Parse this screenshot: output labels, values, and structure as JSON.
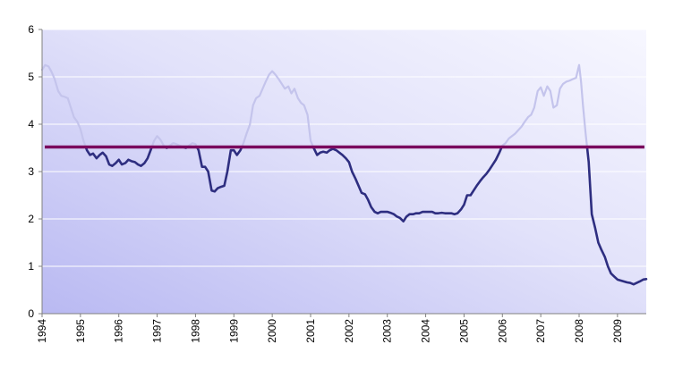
{
  "chart_data": {
    "type": "line",
    "title": "",
    "xlabel": "",
    "ylabel": "",
    "xlim": [
      1994.0,
      2009.75
    ],
    "ylim": [
      0,
      6
    ],
    "y_ticks": [
      0,
      1,
      2,
      3,
      4,
      5,
      6
    ],
    "x_ticks": [
      "1994",
      "1995",
      "1996",
      "1997",
      "1998",
      "1999",
      "2000",
      "2001",
      "2002",
      "2003",
      "2004",
      "2005",
      "2006",
      "2007",
      "2008",
      "2009"
    ],
    "grid": true,
    "legend": "none",
    "reference_line": {
      "y": 3.52,
      "color": "#7a0a5e"
    },
    "series": [
      {
        "color": "#2e2e80",
        "faded_color": "#c4c4ec",
        "points": [
          [
            1994.0,
            5.15
          ],
          [
            1994.08,
            5.25
          ],
          [
            1994.17,
            5.22
          ],
          [
            1994.25,
            5.1
          ],
          [
            1994.33,
            4.95
          ],
          [
            1994.42,
            4.7
          ],
          [
            1994.5,
            4.6
          ],
          [
            1994.58,
            4.58
          ],
          [
            1994.67,
            4.55
          ],
          [
            1994.75,
            4.35
          ],
          [
            1994.83,
            4.15
          ],
          [
            1994.92,
            4.05
          ],
          [
            1995.0,
            3.9
          ],
          [
            1995.08,
            3.65
          ],
          [
            1995.17,
            3.45
          ],
          [
            1995.25,
            3.35
          ],
          [
            1995.33,
            3.38
          ],
          [
            1995.42,
            3.28
          ],
          [
            1995.5,
            3.35
          ],
          [
            1995.58,
            3.4
          ],
          [
            1995.67,
            3.32
          ],
          [
            1995.75,
            3.15
          ],
          [
            1995.83,
            3.12
          ],
          [
            1995.92,
            3.18
          ],
          [
            1996.0,
            3.25
          ],
          [
            1996.08,
            3.15
          ],
          [
            1996.17,
            3.18
          ],
          [
            1996.25,
            3.25
          ],
          [
            1996.33,
            3.22
          ],
          [
            1996.42,
            3.2
          ],
          [
            1996.5,
            3.15
          ],
          [
            1996.58,
            3.12
          ],
          [
            1996.67,
            3.18
          ],
          [
            1996.75,
            3.28
          ],
          [
            1996.83,
            3.45
          ],
          [
            1996.92,
            3.65
          ],
          [
            1997.0,
            3.75
          ],
          [
            1997.08,
            3.68
          ],
          [
            1997.17,
            3.55
          ],
          [
            1997.25,
            3.5
          ],
          [
            1997.33,
            3.55
          ],
          [
            1997.42,
            3.6
          ],
          [
            1997.5,
            3.58
          ],
          [
            1997.58,
            3.55
          ],
          [
            1997.67,
            3.52
          ],
          [
            1997.75,
            3.5
          ],
          [
            1997.83,
            3.55
          ],
          [
            1997.92,
            3.6
          ],
          [
            1998.0,
            3.58
          ],
          [
            1998.08,
            3.45
          ],
          [
            1998.17,
            3.1
          ],
          [
            1998.25,
            3.1
          ],
          [
            1998.33,
            3.0
          ],
          [
            1998.42,
            2.6
          ],
          [
            1998.5,
            2.58
          ],
          [
            1998.58,
            2.65
          ],
          [
            1998.67,
            2.68
          ],
          [
            1998.75,
            2.7
          ],
          [
            1998.83,
            3.0
          ],
          [
            1998.92,
            3.45
          ],
          [
            1999.0,
            3.45
          ],
          [
            1999.08,
            3.35
          ],
          [
            1999.17,
            3.45
          ],
          [
            1999.25,
            3.6
          ],
          [
            1999.33,
            3.8
          ],
          [
            1999.42,
            4.0
          ],
          [
            1999.5,
            4.4
          ],
          [
            1999.58,
            4.55
          ],
          [
            1999.67,
            4.6
          ],
          [
            1999.75,
            4.75
          ],
          [
            1999.83,
            4.9
          ],
          [
            1999.92,
            5.05
          ],
          [
            2000.0,
            5.12
          ],
          [
            2000.08,
            5.05
          ],
          [
            2000.17,
            4.95
          ],
          [
            2000.25,
            4.85
          ],
          [
            2000.33,
            4.75
          ],
          [
            2000.42,
            4.8
          ],
          [
            2000.5,
            4.65
          ],
          [
            2000.58,
            4.75
          ],
          [
            2000.67,
            4.55
          ],
          [
            2000.75,
            4.45
          ],
          [
            2000.83,
            4.4
          ],
          [
            2000.92,
            4.2
          ],
          [
            2001.0,
            3.65
          ],
          [
            2001.08,
            3.5
          ],
          [
            2001.17,
            3.35
          ],
          [
            2001.25,
            3.4
          ],
          [
            2001.33,
            3.42
          ],
          [
            2001.42,
            3.4
          ],
          [
            2001.5,
            3.45
          ],
          [
            2001.58,
            3.48
          ],
          [
            2001.67,
            3.45
          ],
          [
            2001.75,
            3.4
          ],
          [
            2001.83,
            3.35
          ],
          [
            2001.92,
            3.28
          ],
          [
            2002.0,
            3.2
          ],
          [
            2002.08,
            3.0
          ],
          [
            2002.17,
            2.85
          ],
          [
            2002.25,
            2.7
          ],
          [
            2002.33,
            2.55
          ],
          [
            2002.42,
            2.52
          ],
          [
            2002.5,
            2.4
          ],
          [
            2002.58,
            2.25
          ],
          [
            2002.67,
            2.15
          ],
          [
            2002.75,
            2.12
          ],
          [
            2002.83,
            2.15
          ],
          [
            2002.92,
            2.15
          ],
          [
            2003.0,
            2.15
          ],
          [
            2003.08,
            2.13
          ],
          [
            2003.17,
            2.1
          ],
          [
            2003.25,
            2.05
          ],
          [
            2003.33,
            2.02
          ],
          [
            2003.42,
            1.95
          ],
          [
            2003.5,
            2.05
          ],
          [
            2003.58,
            2.1
          ],
          [
            2003.67,
            2.1
          ],
          [
            2003.75,
            2.12
          ],
          [
            2003.83,
            2.12
          ],
          [
            2003.92,
            2.15
          ],
          [
            2004.0,
            2.15
          ],
          [
            2004.08,
            2.15
          ],
          [
            2004.17,
            2.15
          ],
          [
            2004.25,
            2.12
          ],
          [
            2004.33,
            2.12
          ],
          [
            2004.42,
            2.13
          ],
          [
            2004.5,
            2.12
          ],
          [
            2004.58,
            2.12
          ],
          [
            2004.67,
            2.12
          ],
          [
            2004.75,
            2.1
          ],
          [
            2004.83,
            2.12
          ],
          [
            2004.92,
            2.2
          ],
          [
            2005.0,
            2.3
          ],
          [
            2005.08,
            2.5
          ],
          [
            2005.17,
            2.5
          ],
          [
            2005.25,
            2.6
          ],
          [
            2005.33,
            2.7
          ],
          [
            2005.42,
            2.8
          ],
          [
            2005.5,
            2.88
          ],
          [
            2005.58,
            2.95
          ],
          [
            2005.67,
            3.05
          ],
          [
            2005.75,
            3.15
          ],
          [
            2005.83,
            3.25
          ],
          [
            2005.92,
            3.4
          ],
          [
            2006.0,
            3.55
          ],
          [
            2006.08,
            3.6
          ],
          [
            2006.17,
            3.7
          ],
          [
            2006.25,
            3.75
          ],
          [
            2006.33,
            3.8
          ],
          [
            2006.42,
            3.88
          ],
          [
            2006.5,
            3.95
          ],
          [
            2006.58,
            4.05
          ],
          [
            2006.67,
            4.15
          ],
          [
            2006.75,
            4.2
          ],
          [
            2006.83,
            4.35
          ],
          [
            2006.92,
            4.7
          ],
          [
            2007.0,
            4.78
          ],
          [
            2007.08,
            4.6
          ],
          [
            2007.17,
            4.8
          ],
          [
            2007.25,
            4.7
          ],
          [
            2007.33,
            4.35
          ],
          [
            2007.42,
            4.4
          ],
          [
            2007.5,
            4.75
          ],
          [
            2007.58,
            4.85
          ],
          [
            2007.67,
            4.9
          ],
          [
            2007.75,
            4.92
          ],
          [
            2007.83,
            4.95
          ],
          [
            2007.92,
            4.98
          ],
          [
            2008.0,
            5.25
          ],
          [
            2008.05,
            4.9
          ],
          [
            2008.1,
            4.4
          ],
          [
            2008.17,
            3.8
          ],
          [
            2008.25,
            3.2
          ],
          [
            2008.33,
            2.1
          ],
          [
            2008.42,
            1.8
          ],
          [
            2008.5,
            1.5
          ],
          [
            2008.58,
            1.35
          ],
          [
            2008.67,
            1.2
          ],
          [
            2008.75,
            1.0
          ],
          [
            2008.83,
            0.85
          ],
          [
            2008.92,
            0.78
          ],
          [
            2009.0,
            0.72
          ],
          [
            2009.08,
            0.7
          ],
          [
            2009.17,
            0.68
          ],
          [
            2009.25,
            0.66
          ],
          [
            2009.33,
            0.65
          ],
          [
            2009.42,
            0.62
          ],
          [
            2009.5,
            0.65
          ],
          [
            2009.58,
            0.68
          ],
          [
            2009.67,
            0.72
          ],
          [
            2009.75,
            0.73
          ]
        ]
      }
    ]
  }
}
